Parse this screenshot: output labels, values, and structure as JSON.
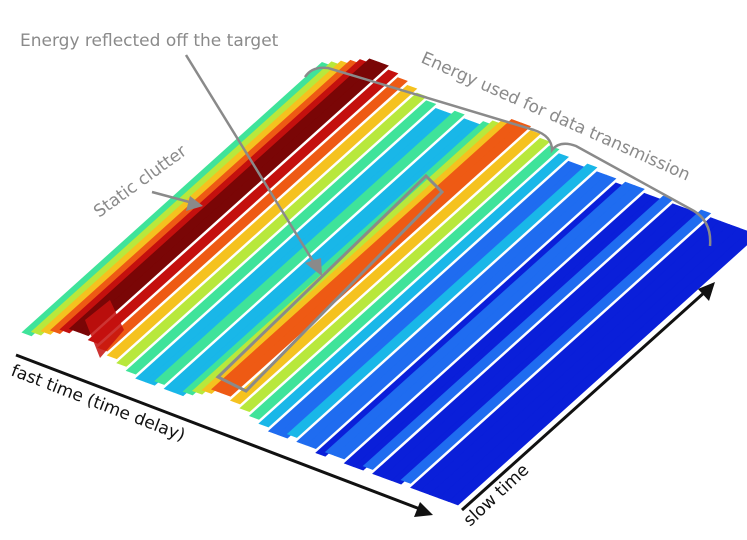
{
  "annotations": {
    "reflected": "Energy reflected off the target",
    "clutter": "Static clutter",
    "transmission": "Energy used for data transmission"
  },
  "axes": {
    "fast_time": "fast time (time delay)",
    "slow_time": "slow time"
  },
  "colors": {
    "annotation": "#8a8a8a",
    "axis": "#111111",
    "colormap": [
      "#0a1fd9",
      "#1f6cf0",
      "#19b7e8",
      "#3fe39a",
      "#b8e83c",
      "#f5c21f",
      "#ee5a14",
      "#c4100e",
      "#7a0606"
    ]
  }
}
